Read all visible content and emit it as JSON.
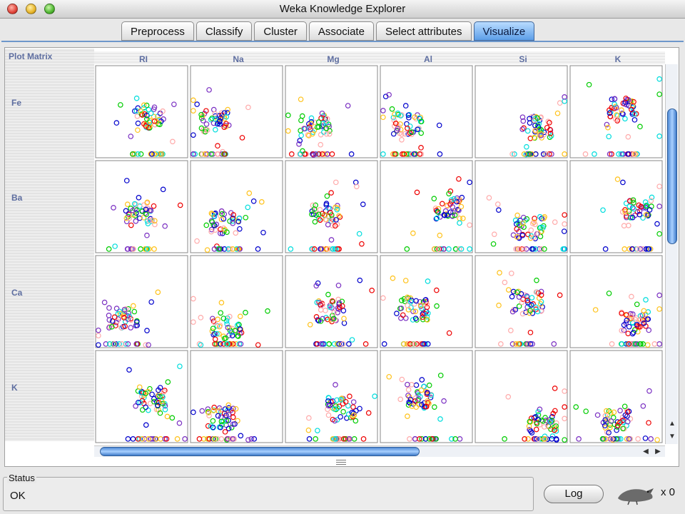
{
  "window": {
    "title": "Weka Knowledge Explorer"
  },
  "tabs": [
    {
      "label": "Preprocess",
      "active": false
    },
    {
      "label": "Classify",
      "active": false
    },
    {
      "label": "Cluster",
      "active": false
    },
    {
      "label": "Associate",
      "active": false
    },
    {
      "label": "Select attributes",
      "active": false
    },
    {
      "label": "Visualize",
      "active": true
    }
  ],
  "plot_matrix": {
    "title": "Plot Matrix",
    "column_attributes": [
      "RI",
      "Na",
      "Mg",
      "Al",
      "Si",
      "K"
    ],
    "row_attributes": [
      "Fe",
      "Ba",
      "Ca",
      "K"
    ],
    "class_colors": [
      "#0000cc",
      "#ee0000",
      "#00cc00",
      "#00dddd",
      "#ffc21a",
      "#ffaaaa",
      "#7a2fc2"
    ]
  },
  "status": {
    "legend": "Status",
    "text": "OK"
  },
  "log_button": {
    "label": "Log"
  },
  "tasks": {
    "count_text": "x 0"
  },
  "icons": {
    "status_bird": "weka-bird-icon",
    "scroll_up": "up-arrow-icon",
    "scroll_down": "down-arrow-icon",
    "scroll_left": "left-arrow-icon",
    "scroll_right": "right-arrow-icon"
  }
}
